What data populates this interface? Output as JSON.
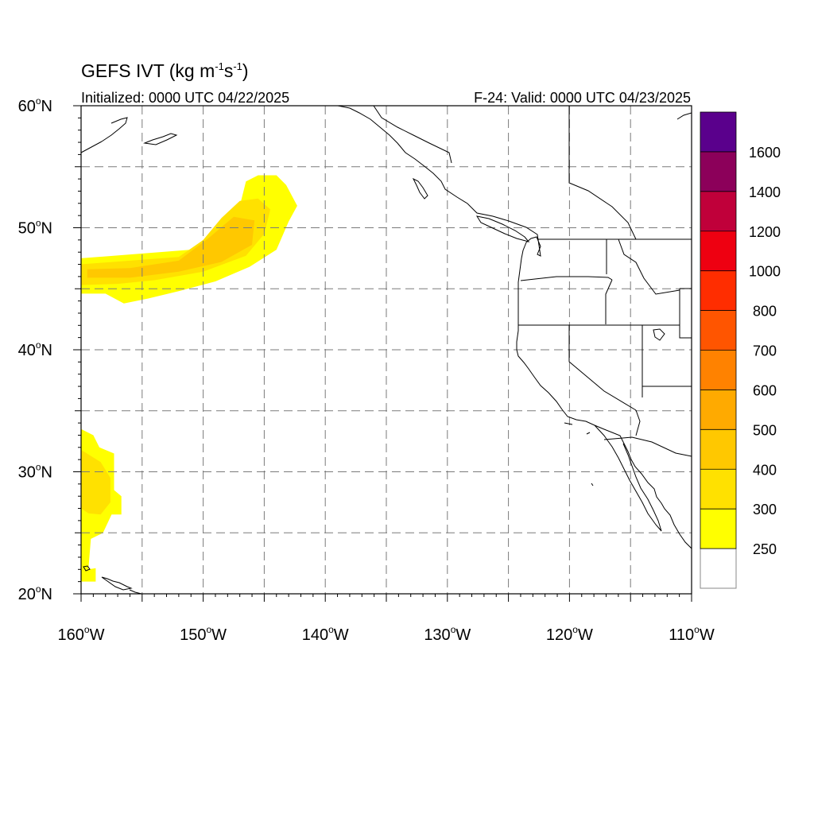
{
  "title": {
    "main": "GEFS IVT (kg m",
    "exp1": "-1",
    "mid": "s",
    "exp2": "-1",
    "close": ")"
  },
  "subtitle_left": "Initialized: 0000 UTC 04/22/2025",
  "subtitle_right": "F-24: Valid: 0000 UTC 04/23/2025",
  "y_ticks": [
    {
      "lat": 60,
      "num": "60",
      "deg": "o",
      "hemi": "N"
    },
    {
      "lat": 50,
      "num": "50",
      "deg": "o",
      "hemi": "N"
    },
    {
      "lat": 40,
      "num": "40",
      "deg": "o",
      "hemi": "N"
    },
    {
      "lat": 30,
      "num": "30",
      "deg": "o",
      "hemi": "N"
    },
    {
      "lat": 20,
      "num": "20",
      "deg": "o",
      "hemi": "N"
    }
  ],
  "x_ticks": [
    {
      "lon": -160,
      "num": "160",
      "deg": "o",
      "hemi": "W"
    },
    {
      "lon": -150,
      "num": "150",
      "deg": "o",
      "hemi": "W"
    },
    {
      "lon": -140,
      "num": "140",
      "deg": "o",
      "hemi": "W"
    },
    {
      "lon": -130,
      "num": "130",
      "deg": "o",
      "hemi": "W"
    },
    {
      "lon": -120,
      "num": "120",
      "deg": "o",
      "hemi": "W"
    },
    {
      "lon": -110,
      "num": "110",
      "deg": "o",
      "hemi": "W"
    }
  ],
  "map_extent": {
    "lon": [
      -160,
      -110
    ],
    "lat": [
      20,
      60
    ]
  },
  "colorbar": {
    "bins": [
      {
        "color": "#ffffff"
      },
      {
        "color": "#ffff00"
      },
      {
        "color": "#ffe100"
      },
      {
        "color": "#ffc800"
      },
      {
        "color": "#ffaa00"
      },
      {
        "color": "#ff8200"
      },
      {
        "color": "#ff5500"
      },
      {
        "color": "#ff2d00"
      },
      {
        "color": "#ee0011"
      },
      {
        "color": "#c0003a"
      },
      {
        "color": "#8c005a"
      },
      {
        "color": "#5a008c"
      }
    ],
    "labels": [
      "250",
      "300",
      "400",
      "500",
      "600",
      "700",
      "800",
      "1000",
      "1200",
      "1400",
      "1600"
    ]
  },
  "ivt_blobs": [
    {
      "name": "ivt-plume-north-pacific",
      "level": 1,
      "lonlat": [
        [
          -160,
          47.5
        ],
        [
          -151,
          48.2
        ],
        [
          -149,
          49.8
        ],
        [
          -147,
          51.8
        ],
        [
          -146.5,
          53.8
        ],
        [
          -145.5,
          54.3
        ],
        [
          -144,
          54.3
        ],
        [
          -143.2,
          53.5
        ],
        [
          -142.3,
          51.8
        ],
        [
          -143,
          50.5
        ],
        [
          -144,
          48.2
        ],
        [
          -146.2,
          46.8
        ],
        [
          -149,
          45.6
        ],
        [
          -152,
          44.8
        ],
        [
          -154.5,
          44.2
        ],
        [
          -156.5,
          43.8
        ],
        [
          -158,
          44.6
        ],
        [
          -160,
          44.6
        ]
      ]
    },
    {
      "name": "ivt-plume-north-pacific-core",
      "level": 2,
      "lonlat": [
        [
          -160,
          47
        ],
        [
          -152,
          47.6
        ],
        [
          -150,
          49
        ],
        [
          -148.5,
          50.8
        ],
        [
          -147,
          52.2
        ],
        [
          -145.5,
          52.4
        ],
        [
          -144.5,
          51.5
        ],
        [
          -145,
          49.5
        ],
        [
          -146.5,
          47.7
        ],
        [
          -150,
          46.4
        ],
        [
          -154,
          45.7
        ],
        [
          -157,
          45.4
        ],
        [
          -160,
          45.3
        ]
      ]
    },
    {
      "name": "ivt-plume-north-pacific-center",
      "level": 3,
      "lonlat": [
        [
          -159.5,
          46.6
        ],
        [
          -156,
          46.7
        ],
        [
          -152,
          47.3
        ],
        [
          -149.5,
          49.2
        ],
        [
          -147.5,
          50.9
        ],
        [
          -145.8,
          50.6
        ],
        [
          -146,
          48.6
        ],
        [
          -148.5,
          47.2
        ],
        [
          -152,
          46.4
        ],
        [
          -156,
          45.9
        ],
        [
          -159.5,
          45.9
        ]
      ]
    },
    {
      "name": "ivt-hawaii-moisture",
      "level": 1,
      "lonlat": [
        [
          -160,
          33.5
        ],
        [
          -159,
          33
        ],
        [
          -158.5,
          32
        ],
        [
          -157.3,
          31.5
        ],
        [
          -157.3,
          28.5
        ],
        [
          -156.7,
          28
        ],
        [
          -156.7,
          26.5
        ],
        [
          -157.5,
          26.5
        ],
        [
          -158.2,
          25
        ],
        [
          -159.2,
          24.5
        ],
        [
          -159.4,
          22
        ],
        [
          -158.8,
          22.1
        ],
        [
          -158.8,
          21
        ],
        [
          -160,
          21
        ]
      ]
    },
    {
      "name": "ivt-hawaii-moisture-core",
      "level": 2,
      "lonlat": [
        [
          -160,
          31.8
        ],
        [
          -158.4,
          30.8
        ],
        [
          -157.6,
          29.5
        ],
        [
          -157.6,
          27.5
        ],
        [
          -158.4,
          26.5
        ],
        [
          -159.4,
          26.6
        ],
        [
          -160,
          27
        ]
      ]
    }
  ]
}
